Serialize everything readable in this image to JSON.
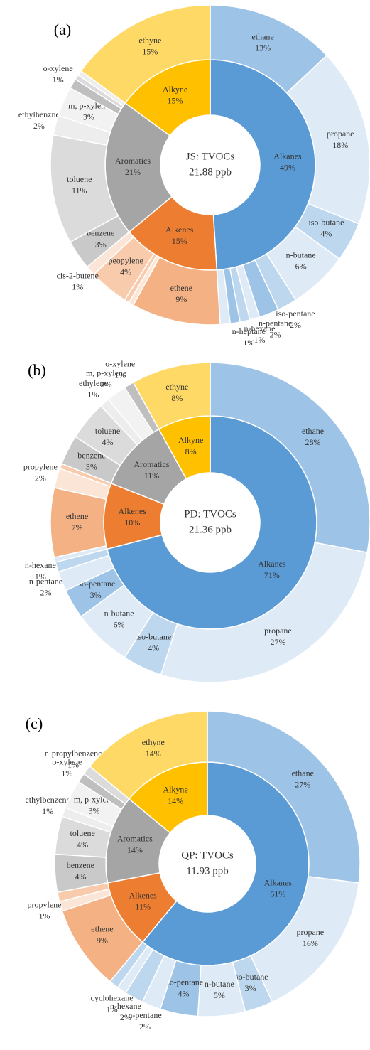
{
  "chart_data": [
    {
      "type": "sunburst",
      "panel_label": "(a)",
      "center_title": "JS: TVOCs",
      "center_value": "21.88 ppb",
      "inner": {
        "categories": [
          "Alkanes",
          "Alkenes",
          "Aromatics",
          "Alkyne"
        ],
        "values": [
          49,
          15,
          21,
          15
        ],
        "value_labels": [
          "49%",
          "15%",
          "21%",
          "15%"
        ],
        "colors": [
          "#5b9bd5",
          "#ed7d31",
          "#a5a5a5",
          "#ffc000"
        ]
      },
      "outer": {
        "categories": [
          "ethane",
          "propane",
          "iso-butane",
          "n-butane",
          "iso-pentane",
          "n-pentane",
          "n-hexane",
          "n-heptane",
          null,
          null,
          "ethene",
          null,
          null,
          "peopylene",
          "cis-2-butene",
          "benzene",
          "toluene",
          "ethylbenzne",
          "m, p-xylene",
          "o-xylene",
          null,
          null,
          "ethyne"
        ],
        "values": [
          13,
          18,
          4,
          6,
          2,
          2,
          1,
          1,
          1,
          1,
          9,
          0.5,
          0.5,
          4,
          1,
          3,
          11,
          2,
          3,
          1,
          0.5,
          0.5,
          15
        ],
        "value_labels": [
          "13%",
          "18%",
          "4%",
          "6%",
          "2%",
          "2%",
          "1%",
          "1%",
          null,
          null,
          "9%",
          null,
          null,
          "4%",
          "1%",
          "3%",
          "11%",
          "2%",
          "3%",
          "1%",
          null,
          null,
          "15%"
        ],
        "colors": [
          "#9dc3e6",
          "#deebf7",
          "#bdd7ee",
          "#deebf7",
          "#bdd7ee",
          "#9dc3e6",
          "#deebf7",
          "#bdd7ee",
          "#9dc3e6",
          "#deebf7",
          "#f4b183",
          "#fbe5d6",
          "#f8cbad",
          "#f8cbad",
          "#fbe5d6",
          "#c9c9c9",
          "#dbdbdb",
          "#ededed",
          "#f2f2f2",
          "#bfbfbf",
          "#dbdbdb",
          "#ededed",
          "#ffd966"
        ]
      }
    },
    {
      "type": "sunburst",
      "panel_label": "(b)",
      "center_title": "PD: TVOCs",
      "center_value": "21.36 ppb",
      "inner": {
        "categories": [
          "Alkanes",
          "Alkenes",
          "Aromatics",
          "Alkyne"
        ],
        "values": [
          71,
          10,
          11,
          8
        ],
        "value_labels": [
          "71%",
          "10%",
          "11%",
          "8%"
        ],
        "colors": [
          "#5b9bd5",
          "#ed7d31",
          "#a5a5a5",
          "#ffc000"
        ]
      },
      "outer": {
        "categories": [
          "ethane",
          "propane",
          "iso-butane",
          "n-butane",
          "iso-pentane",
          "n-pentane",
          "n-hexane",
          null,
          "ethene",
          "propylene",
          null,
          "benzene",
          "toluene",
          "ethylene",
          "m, p-xylene",
          "o-xylene",
          "ethyne"
        ],
        "values": [
          28,
          27,
          4,
          6,
          3,
          2,
          1,
          0.5,
          7,
          2,
          0.5,
          3,
          4,
          1,
          2,
          1,
          8
        ],
        "value_labels": [
          "28%",
          "27%",
          "4%",
          "6%",
          "3%",
          "2%",
          "1%",
          null,
          "7%",
          "2%",
          null,
          "3%",
          "4%",
          "1%",
          "2%",
          "1%",
          "8%"
        ],
        "colors": [
          "#9dc3e6",
          "#deebf7",
          "#bdd7ee",
          "#deebf7",
          "#9dc3e6",
          "#deebf7",
          "#bdd7ee",
          "#deebf7",
          "#f4b183",
          "#fbe5d6",
          "#f8cbad",
          "#c9c9c9",
          "#dbdbdb",
          "#ededed",
          "#f2f2f2",
          "#bfbfbf",
          "#ffd966"
        ]
      }
    },
    {
      "type": "sunburst",
      "panel_label": "(c)",
      "center_title": "QP: TVOCs",
      "center_value": "11.93 ppb",
      "inner": {
        "categories": [
          "Alkanes",
          "Alkenes",
          "Aromatics",
          "Alkyne"
        ],
        "values": [
          61,
          11,
          14,
          14
        ],
        "value_labels": [
          "61%",
          "11%",
          "14%",
          "14%"
        ],
        "colors": [
          "#5b9bd5",
          "#ed7d31",
          "#a5a5a5",
          "#ffc000"
        ]
      },
      "outer": {
        "categories": [
          "ethane",
          "propane",
          "iso-butane",
          "n-butane",
          "iso-pentane",
          "n-pentane",
          "n-hexane",
          "cyclohexane",
          null,
          "ethene",
          "propylene",
          null,
          "benzene",
          "toluene",
          "ethylbenzene",
          "m, p-xylene",
          "o-xylene",
          "n-propylbenzene",
          "ethyne"
        ],
        "values": [
          27,
          16,
          3,
          5,
          4,
          2,
          2,
          1,
          1,
          9,
          1,
          1,
          4,
          4,
          1,
          3,
          1,
          1,
          14
        ],
        "value_labels": [
          "27%",
          "16%",
          "3%",
          "5%",
          "4%",
          "2%",
          "2%",
          "1%",
          null,
          "9%",
          "1%",
          null,
          "4%",
          "4%",
          "1%",
          "3%",
          "1%",
          "1%",
          "14%"
        ],
        "colors": [
          "#9dc3e6",
          "#deebf7",
          "#bdd7ee",
          "#deebf7",
          "#9dc3e6",
          "#deebf7",
          "#bdd7ee",
          "#deebf7",
          "#bdd7ee",
          "#f4b183",
          "#fbe5d6",
          "#f8cbad",
          "#c9c9c9",
          "#dbdbdb",
          "#ededed",
          "#f2f2f2",
          "#bfbfbf",
          "#dbdbdb",
          "#ffd966"
        ]
      }
    }
  ]
}
